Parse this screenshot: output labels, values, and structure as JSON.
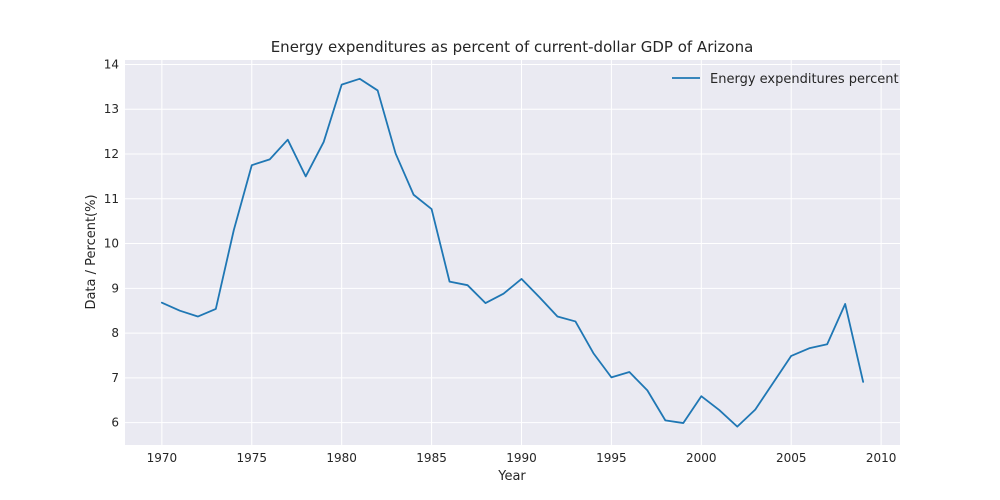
{
  "chart_data": {
    "type": "line",
    "title": "Energy expenditures as percent of current-dollar GDP of Arizona",
    "xlabel": "Year",
    "ylabel": "Data / Percent(%)",
    "xlim": [
      1967.95,
      2011.05
    ],
    "ylim": [
      5.5,
      14.1
    ],
    "xticks": [
      1970,
      1975,
      1980,
      1985,
      1990,
      1995,
      2000,
      2005,
      2010
    ],
    "yticks": [
      6,
      7,
      8,
      9,
      10,
      11,
      12,
      13,
      14
    ],
    "grid": true,
    "legend_position": "top-right",
    "series": [
      {
        "name": "Energy expenditures percent",
        "color": "#1f77b4",
        "x": [
          1970,
          1971,
          1972,
          1973,
          1974,
          1975,
          1976,
          1977,
          1978,
          1979,
          1980,
          1981,
          1982,
          1983,
          1984,
          1985,
          1986,
          1987,
          1988,
          1989,
          1990,
          1991,
          1992,
          1993,
          1994,
          1995,
          1996,
          1997,
          1998,
          1999,
          2000,
          2001,
          2002,
          2003,
          2004,
          2005,
          2006,
          2007,
          2008,
          2009
        ],
        "values": [
          8.68,
          8.5,
          8.37,
          8.54,
          10.3,
          11.75,
          11.88,
          12.32,
          11.5,
          12.27,
          13.55,
          13.68,
          13.42,
          12.01,
          11.09,
          10.77,
          9.15,
          9.07,
          8.67,
          8.88,
          9.21,
          8.8,
          8.37,
          8.26,
          7.55,
          7.01,
          7.13,
          6.72,
          6.05,
          5.99,
          6.59,
          6.28,
          5.91,
          6.29,
          6.89,
          7.49,
          7.66,
          7.75,
          8.65,
          6.91
        ]
      }
    ]
  }
}
